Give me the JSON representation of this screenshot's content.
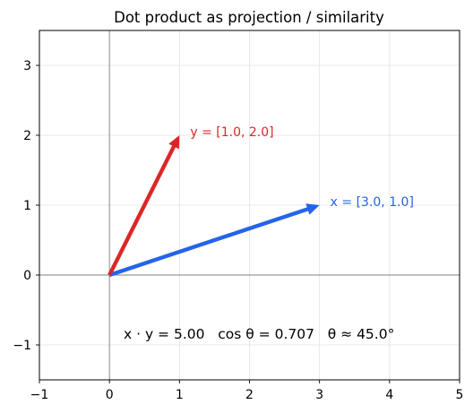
{
  "chart_data": {
    "type": "line",
    "title": "Dot product as projection / similarity",
    "xlabel": "",
    "ylabel": "",
    "xlim": [
      -1,
      5
    ],
    "ylim": [
      -1.5,
      3.5
    ],
    "x_ticks": [
      -1,
      0,
      1,
      2,
      3,
      4,
      5
    ],
    "y_ticks": [
      -1,
      0,
      1,
      2,
      3
    ],
    "x_tick_labels": [
      "−1",
      "0",
      "1",
      "2",
      "3",
      "4",
      "5"
    ],
    "y_tick_labels": [
      "−1",
      "0",
      "1",
      "2",
      "3"
    ],
    "grid": true,
    "series": [
      {
        "name": "x",
        "label": "x = [3.0, 1.0]",
        "from": [
          0,
          0
        ],
        "to": [
          3.0,
          1.0
        ],
        "color": "#2563eb"
      },
      {
        "name": "y",
        "label": "y = [1.0, 2.0]",
        "from": [
          0,
          0
        ],
        "to": [
          1.0,
          2.0
        ],
        "color": "#dc2626"
      }
    ],
    "annotation": "x · y = 5.00   cos θ = 0.707   θ ≈ 45.0°"
  }
}
